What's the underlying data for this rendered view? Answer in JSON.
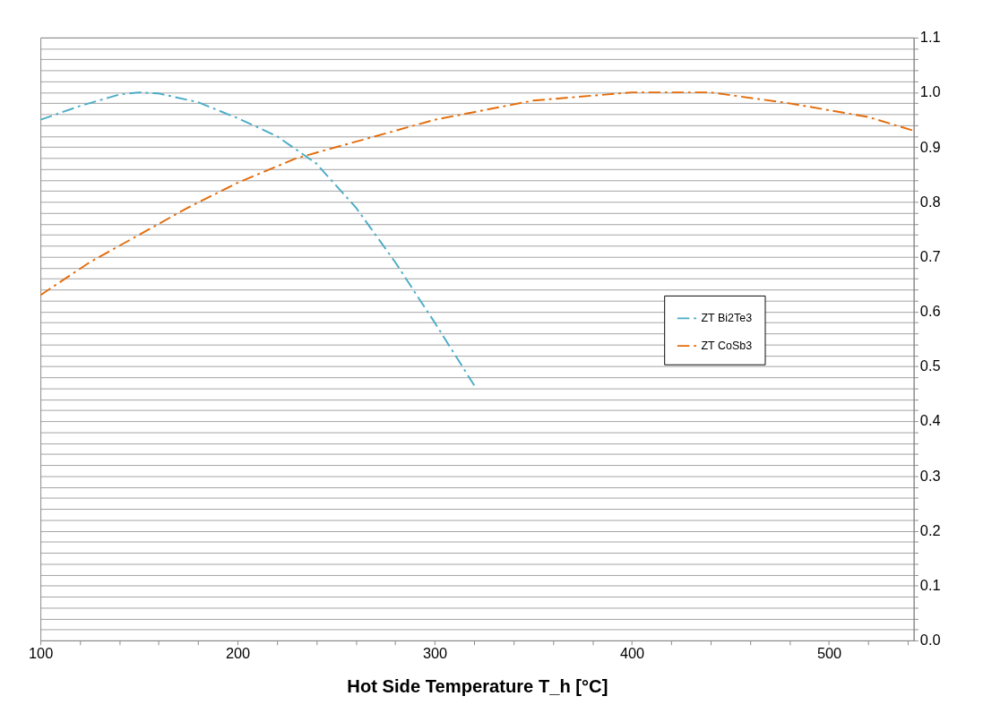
{
  "chart_data": {
    "type": "line",
    "xlabel": "Hot Side Temperature  T_h [°C]",
    "xlim": [
      100,
      543
    ],
    "ylim": [
      0,
      1.1
    ],
    "xticks": [
      100,
      {
        "value": 120,
        "label": null
      },
      {
        "value": 140,
        "label": null
      },
      {
        "value": 160,
        "label": null
      },
      {
        "value": 180,
        "label": null
      },
      200,
      {
        "value": 220,
        "label": null
      },
      {
        "value": 240,
        "label": null
      },
      {
        "value": 260,
        "label": null
      },
      {
        "value": 280,
        "label": null
      },
      300,
      {
        "value": 320,
        "label": null
      },
      {
        "value": 340,
        "label": null
      },
      {
        "value": 360,
        "label": null
      },
      {
        "value": 380,
        "label": null
      },
      400,
      {
        "value": 420,
        "label": null
      },
      {
        "value": 440,
        "label": null
      },
      {
        "value": 460,
        "label": null
      },
      {
        "value": 480,
        "label": null
      },
      500,
      {
        "value": 520,
        "label": null
      },
      {
        "value": 540,
        "label": null
      }
    ],
    "yticks": [
      {
        "value": 0,
        "label": "0.0"
      },
      {
        "value": 0.02,
        "label": null
      },
      {
        "value": 0.04,
        "label": null
      },
      {
        "value": 0.06,
        "label": null
      },
      {
        "value": 0.08,
        "label": null
      },
      0.1,
      {
        "value": 0.12,
        "label": null
      },
      {
        "value": 0.14,
        "label": null
      },
      {
        "value": 0.16,
        "label": null
      },
      {
        "value": 0.18,
        "label": null
      },
      0.2,
      {
        "value": 0.22,
        "label": null
      },
      {
        "value": 0.24,
        "label": null
      },
      {
        "value": 0.26,
        "label": null
      },
      {
        "value": 0.28,
        "label": null
      },
      0.3,
      {
        "value": 0.32,
        "label": null
      },
      {
        "value": 0.34,
        "label": null
      },
      {
        "value": 0.36,
        "label": null
      },
      {
        "value": 0.38,
        "label": null
      },
      0.4,
      {
        "value": 0.42,
        "label": null
      },
      {
        "value": 0.44,
        "label": null
      },
      {
        "value": 0.46,
        "label": null
      },
      {
        "value": 0.48,
        "label": null
      },
      0.5,
      {
        "value": 0.52,
        "label": null
      },
      {
        "value": 0.54,
        "label": null
      },
      {
        "value": 0.56,
        "label": null
      },
      {
        "value": 0.58,
        "label": null
      },
      0.6,
      {
        "value": 0.62,
        "label": null
      },
      {
        "value": 0.64,
        "label": null
      },
      {
        "value": 0.66,
        "label": null
      },
      {
        "value": 0.68,
        "label": null
      },
      0.7,
      {
        "value": 0.72,
        "label": null
      },
      {
        "value": 0.74,
        "label": null
      },
      {
        "value": 0.76,
        "label": null
      },
      {
        "value": 0.78,
        "label": null
      },
      0.8,
      {
        "value": 0.82,
        "label": null
      },
      {
        "value": 0.84,
        "label": null
      },
      {
        "value": 0.86,
        "label": null
      },
      {
        "value": 0.88,
        "label": null
      },
      0.9,
      {
        "value": 0.92,
        "label": null
      },
      {
        "value": 0.94,
        "label": null
      },
      {
        "value": 0.96,
        "label": null
      },
      {
        "value": 0.98,
        "label": null
      },
      {
        "value": 1.0,
        "label": "1.0"
      },
      {
        "value": 1.02,
        "label": null
      },
      {
        "value": 1.04,
        "label": null
      },
      {
        "value": 1.06,
        "label": null
      },
      {
        "value": 1.08,
        "label": null
      },
      1.1
    ],
    "grid": "y",
    "legend": "right",
    "line_style": "dashed",
    "marker": "none",
    "series": [
      {
        "name": "ZT Bi2Te3",
        "color": "#4bacc6",
        "x": [
          100,
          120,
          140,
          150,
          160,
          180,
          200,
          220,
          240,
          260,
          280,
          300,
          321
        ],
        "values": [
          0.95,
          0.975,
          0.996,
          1.0,
          0.998,
          0.982,
          0.953,
          0.92,
          0.87,
          0.79,
          0.69,
          0.58,
          0.46
        ]
      },
      {
        "name": "ZT CoSb3",
        "color": "#e46c0a",
        "x": [
          100,
          125,
          150,
          175,
          200,
          230,
          250,
          300,
          350,
          400,
          440,
          480,
          520,
          543
        ],
        "values": [
          0.63,
          0.69,
          0.74,
          0.79,
          0.835,
          0.88,
          0.9,
          0.95,
          0.985,
          1.0,
          1.0,
          0.98,
          0.955,
          0.93
        ]
      }
    ]
  }
}
